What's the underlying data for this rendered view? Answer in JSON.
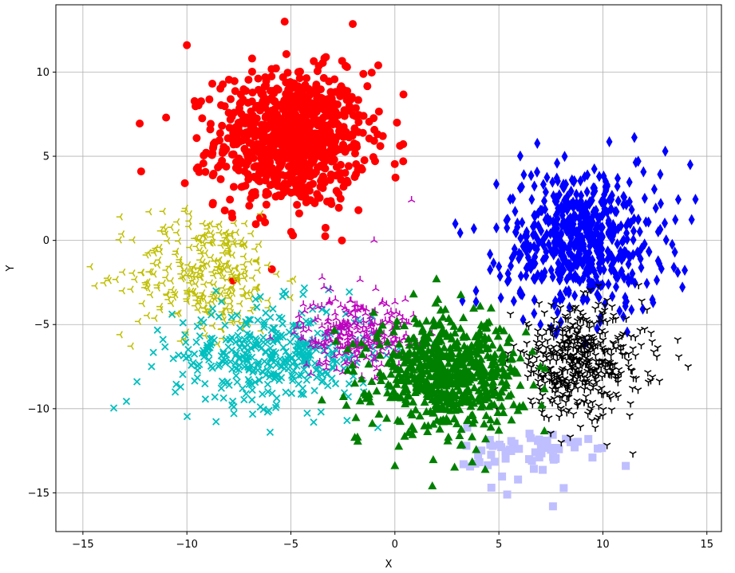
{
  "chart_data": {
    "type": "scatter",
    "title": "",
    "xlabel": "X",
    "ylabel": "Y",
    "xlim": [
      -16.3,
      15.7
    ],
    "ylim": [
      -17.3,
      14.0
    ],
    "xticks": [
      -15,
      -10,
      -5,
      0,
      5,
      10,
      15
    ],
    "yticks": [
      -15,
      -10,
      -5,
      0,
      5,
      10
    ],
    "xtick_labels": [
      "−15",
      "−10",
      "−5",
      "0",
      "5",
      "10",
      "15"
    ],
    "ytick_labels": [
      "−15",
      "−10",
      "−5",
      "0",
      "5",
      "10"
    ],
    "grid": true,
    "legend": false,
    "series": [
      {
        "color": "#ff0000",
        "marker": "circle",
        "center": [
          -5.0,
          6.0
        ],
        "spread": [
          1.8,
          2.0
        ],
        "count": 900,
        "extremes": [
          [
            -12.2,
            4.1
          ],
          [
            -11.0,
            7.3
          ],
          [
            -10.0,
            11.6
          ],
          [
            -5.3,
            13.0
          ],
          [
            0.1,
            7.0
          ],
          [
            0.4,
            4.7
          ],
          [
            -2.3,
            10.3
          ],
          [
            -0.8,
            10.4
          ],
          [
            -4.9,
            0.3
          ],
          [
            -10.1,
            3.4
          ]
        ]
      },
      {
        "color": "#0000ff",
        "marker": "diamond",
        "center": [
          9.0,
          0.0
        ],
        "spread": [
          1.9,
          2.1
        ],
        "count": 550,
        "extremes": [
          [
            13.0,
            5.3
          ],
          [
            14.2,
            4.5
          ],
          [
            6.2,
            3.9
          ],
          [
            3.8,
            0.7
          ],
          [
            3.9,
            -3.0
          ],
          [
            13.6,
            -1.9
          ],
          [
            11.7,
            4.7
          ],
          [
            7.0,
            -5.0
          ]
        ]
      },
      {
        "color": "#008000",
        "marker": "triangle",
        "center": [
          2.5,
          -8.0
        ],
        "spread": [
          1.8,
          1.6
        ],
        "count": 650,
        "extremes": [
          [
            1.8,
            -14.6
          ],
          [
            0.0,
            -13.4
          ],
          [
            -1.8,
            -11.7
          ],
          [
            -1.4,
            -9.2
          ],
          [
            2.0,
            -2.3
          ],
          [
            7.0,
            -7.5
          ],
          [
            5.5,
            -5.8
          ]
        ]
      },
      {
        "color": "#000000",
        "marker": "tri_down",
        "center": [
          8.8,
          -7.2
        ],
        "spread": [
          1.6,
          1.6
        ],
        "count": 450,
        "extremes": [
          [
            14.1,
            -7.5
          ],
          [
            13.6,
            -5.9
          ],
          [
            11.6,
            -8.2
          ],
          [
            8.0,
            -12.0
          ],
          [
            4.9,
            -10.0
          ],
          [
            9.8,
            -2.7
          ]
        ]
      },
      {
        "color": "#bfbf00",
        "marker": "tri_left",
        "center": [
          -9.0,
          -2.0
        ],
        "spread": [
          1.8,
          1.8
        ],
        "count": 300,
        "extremes": [
          [
            -14.4,
            -2.7
          ],
          [
            -13.2,
            1.4
          ],
          [
            -11.8,
            1.7
          ],
          [
            -13.2,
            -5.6
          ],
          [
            -5.0,
            -3.4
          ],
          [
            -7.2,
            1.0
          ]
        ]
      },
      {
        "color": "#00bfbf",
        "marker": "x",
        "center": [
          -5.8,
          -6.8
        ],
        "spread": [
          2.4,
          1.5
        ],
        "count": 400,
        "extremes": [
          [
            -12.4,
            -8.4
          ],
          [
            -11.7,
            -7.5
          ],
          [
            -6.0,
            -11.4
          ],
          [
            -2.3,
            -10.7
          ],
          [
            -1.5,
            -9.0
          ],
          [
            -8.6,
            -3.0
          ]
        ]
      },
      {
        "color": "#bf00bf",
        "marker": "tri_up",
        "center": [
          -1.8,
          -5.5
        ],
        "spread": [
          1.4,
          1.1
        ],
        "count": 260,
        "extremes": [
          [
            -4.4,
            -3.8
          ],
          [
            0.8,
            2.4
          ],
          [
            -1.0,
            0.0
          ],
          [
            0.8,
            -6.3
          ],
          [
            -2.4,
            -7.3
          ],
          [
            -3.5,
            -2.2
          ]
        ]
      },
      {
        "color": "#bfbfff",
        "marker": "square",
        "center": [
          6.3,
          -12.6
        ],
        "spread": [
          1.4,
          0.8
        ],
        "count": 60,
        "extremes": [
          [
            3.3,
            -13.3
          ],
          [
            5.4,
            -15.1
          ],
          [
            7.6,
            -15.8
          ],
          [
            11.1,
            -13.4
          ],
          [
            9.5,
            -12.9
          ],
          [
            9.3,
            -11.8
          ]
        ]
      }
    ]
  }
}
